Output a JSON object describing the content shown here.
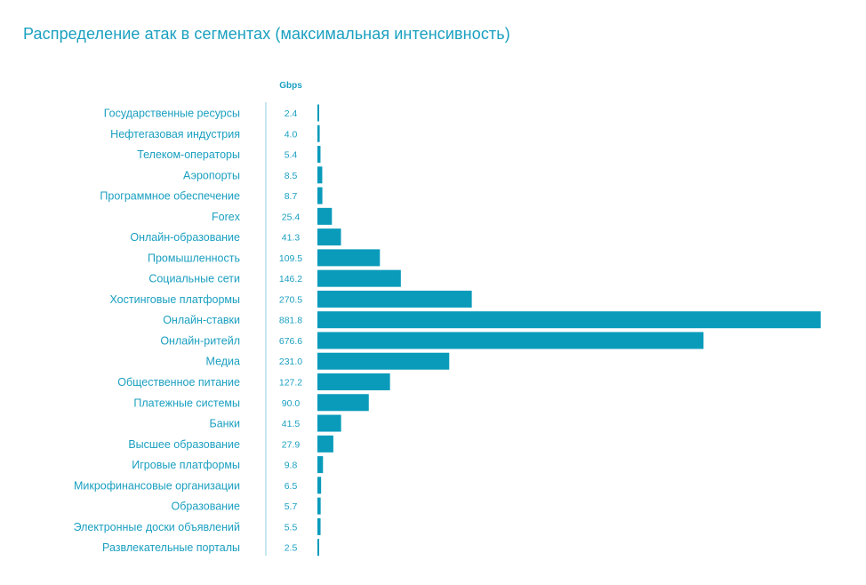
{
  "chart_data": {
    "type": "bar",
    "orientation": "horizontal",
    "title": "Распределение атак в сегментах (максимальная интенсивность)",
    "unit": "Gbps",
    "categories": [
      "Государственные ресурсы",
      "Нефтегазовая индустрия",
      "Телеком-операторы",
      "Аэропорты",
      "Программное обеспечение",
      "Forex",
      "Онлайн-образование",
      "Промышленность",
      "Социальные сети",
      "Хостинговые платформы",
      "Онлайн-ставки",
      "Онлайн-ритейл",
      "Медиа",
      "Общественное питание",
      "Платежные системы",
      "Банки",
      "Высшее образование",
      "Игровые платформы",
      "Микрофинансовые организации",
      "Образование",
      "Электронные доски объявлений",
      "Развлекательные порталы"
    ],
    "values": [
      2.4,
      4.0,
      5.4,
      8.5,
      8.7,
      25.4,
      41.3,
      109.5,
      146.2,
      270.5,
      881.8,
      676.6,
      231.0,
      127.2,
      90.0,
      41.5,
      27.9,
      9.8,
      6.5,
      5.7,
      5.5,
      2.5
    ],
    "value_labels": [
      "2.4",
      "4.0",
      "5.4",
      "8.5",
      "8.7",
      "25.4",
      "41.3",
      "109.5",
      "146.2",
      "270.5",
      "881.8",
      "676.6",
      "231.0",
      "127.2",
      "90.0",
      "41.5",
      "27.9",
      "9.8",
      "6.5",
      "5.7",
      "5.5",
      "2.5"
    ],
    "bar_color": "#0a9bbb",
    "text_color": "#1a9fc0",
    "grid": false,
    "legend": "none"
  }
}
